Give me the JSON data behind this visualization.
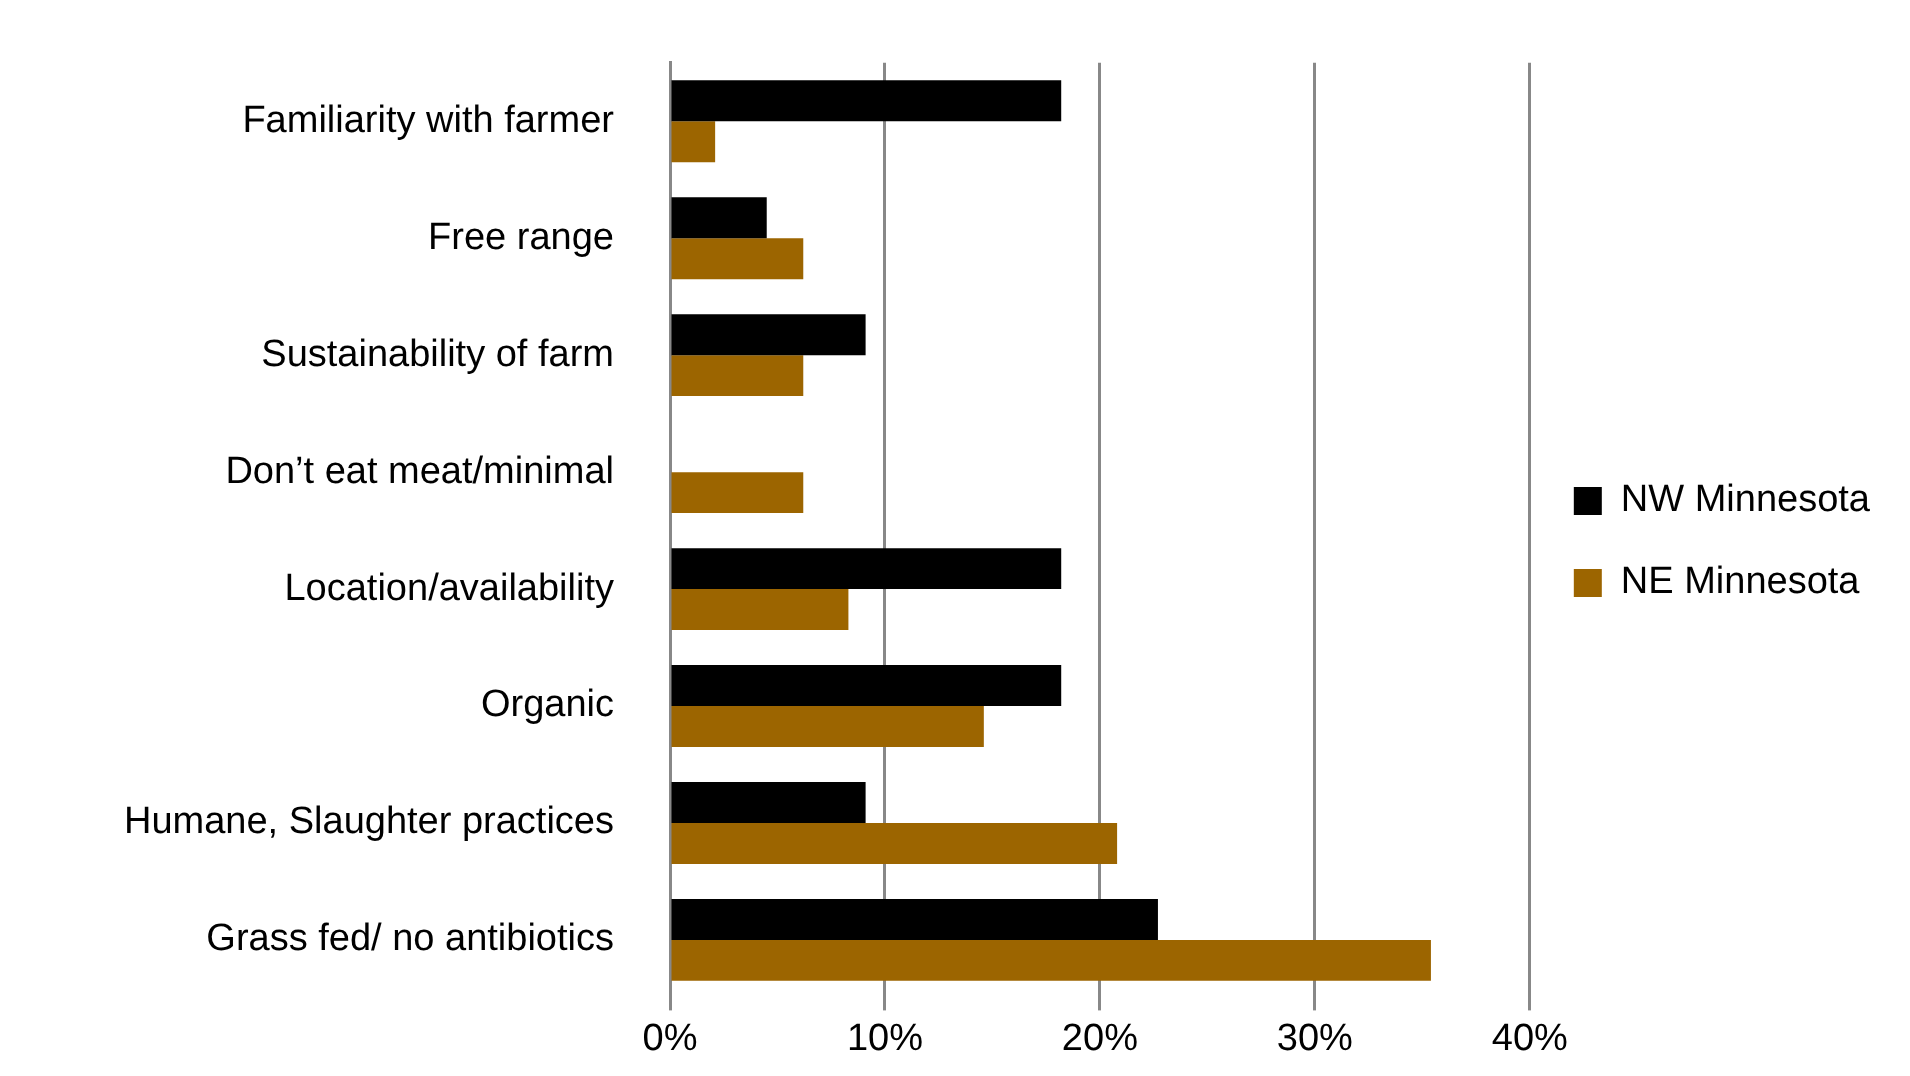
{
  "chart_data": {
    "type": "bar",
    "orientation": "horizontal",
    "categories": [
      "Familiarity with farmer",
      "Free range",
      "Sustainability of farm",
      "Don’t eat meat/minimal",
      "Location/availability",
      "Organic",
      "Humane, Slaughter practices",
      "Grass fed/ no antibiotics"
    ],
    "series": [
      {
        "name": "NW Minnesota",
        "color": "#000000",
        "values": [
          18.2,
          4.5,
          9.1,
          null,
          18.2,
          18.2,
          9.1,
          22.7
        ]
      },
      {
        "name": "NE Minnesota",
        "color": "#9c6500",
        "values": [
          2.1,
          6.2,
          6.2,
          6.2,
          8.3,
          14.6,
          20.8,
          35.4
        ]
      }
    ],
    "xlim": [
      0,
      40
    ],
    "xticks": [
      {
        "value": 0,
        "label": "0%"
      },
      {
        "value": 10,
        "label": "10%"
      },
      {
        "value": 20,
        "label": "20%"
      },
      {
        "value": 30,
        "label": "30%"
      },
      {
        "value": 40,
        "label": "40%"
      }
    ],
    "grid": "x",
    "legend": "right"
  }
}
